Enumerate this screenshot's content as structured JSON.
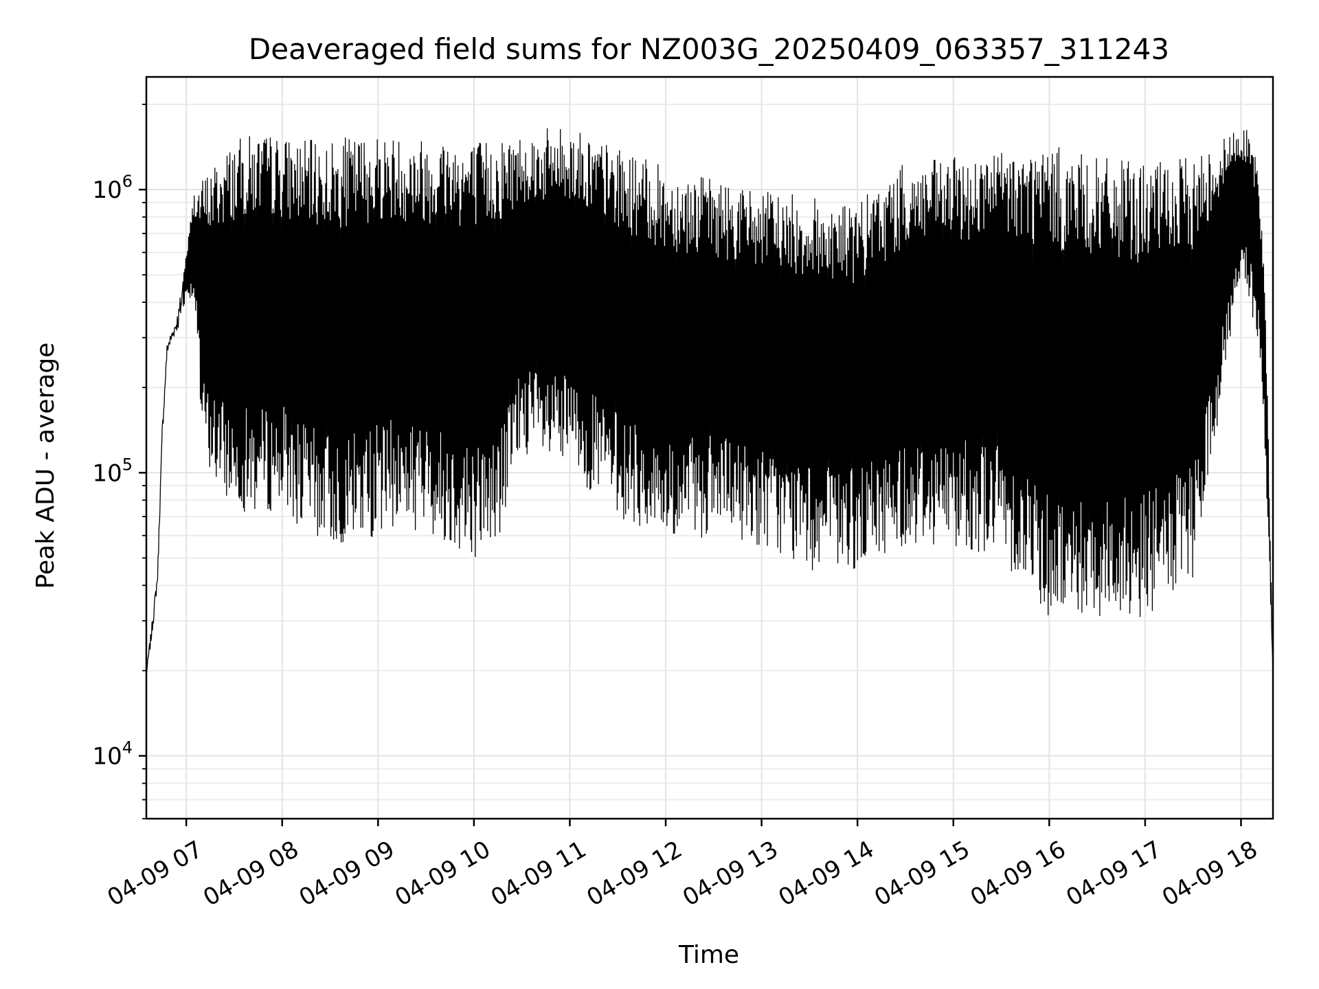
{
  "chart_data": {
    "type": "line",
    "title": "Deaveraged field sums for NZ003G_20250409_063357_311243",
    "xlabel": "Time",
    "ylabel": "Peak ADU - average",
    "yscale": "log",
    "grid": true,
    "line_color": "#000000",
    "x_range": [
      "04-09 06:35",
      "04-09 18:20"
    ],
    "ylim": [
      6000,
      2500000
    ],
    "x_ticks": [
      "04-09 07",
      "04-09 08",
      "04-09 09",
      "04-09 10",
      "04-09 11",
      "04-09 12",
      "04-09 13",
      "04-09 14",
      "04-09 15",
      "04-09 16",
      "04-09 17",
      "04-09 18"
    ],
    "y_ticks": [
      {
        "value": 10000,
        "base": "10",
        "exp": "4"
      },
      {
        "value": 100000,
        "base": "10",
        "exp": "5"
      },
      {
        "value": 1000000,
        "base": "10",
        "exp": "6"
      }
    ],
    "series": [
      {
        "x": [
          "04-09 06:35",
          "04-09 06:38",
          "04-09 06:42",
          "04-09 06:45",
          "04-09 06:48",
          "04-09 06:52",
          "04-09 06:55",
          "04-09 07:00",
          "04-09 07:05",
          "04-09 07:10",
          "04-09 07:15",
          "04-09 07:20",
          "04-09 07:30",
          "04-09 07:45",
          "04-09 08:00",
          "04-09 08:15",
          "04-09 08:30",
          "04-09 08:45",
          "04-09 09:00",
          "04-09 09:15",
          "04-09 09:30",
          "04-09 09:45",
          "04-09 10:00",
          "04-09 10:15",
          "04-09 10:30",
          "04-09 10:45",
          "04-09 11:00",
          "04-09 11:30",
          "04-09 12:00",
          "04-09 12:30",
          "04-09 13:00",
          "04-09 13:30",
          "04-09 14:00",
          "04-09 14:30",
          "04-09 15:00",
          "04-09 15:30",
          "04-09 16:00",
          "04-09 16:30",
          "04-09 17:00",
          "04-09 17:30",
          "04-09 18:00",
          "04-09 18:05",
          "04-09 18:10",
          "04-09 18:15",
          "04-09 18:20"
        ],
        "max": [
          20000,
          28000,
          45000,
          150000,
          290000,
          330000,
          380000,
          600000,
          1000000,
          1100000,
          1200000,
          1300000,
          1500000,
          1600000,
          1550000,
          1500000,
          1500000,
          1550000,
          1600000,
          1550000,
          1550000,
          1600000,
          1500000,
          1550000,
          1600000,
          1650000,
          1700000,
          1400000,
          1200000,
          1100000,
          1000000,
          950000,
          900000,
          1250000,
          1300000,
          1400000,
          1450000,
          1300000,
          1250000,
          1300000,
          1700000,
          1600000,
          1300000,
          500000,
          20000
        ],
        "min": [
          19000,
          25000,
          40000,
          130000,
          260000,
          300000,
          320000,
          420000,
          400000,
          120000,
          100000,
          85000,
          75000,
          70000,
          75000,
          60000,
          55000,
          55000,
          60000,
          65000,
          60000,
          55000,
          50000,
          55000,
          120000,
          100000,
          100000,
          70000,
          55000,
          60000,
          55000,
          45000,
          45000,
          55000,
          55000,
          50000,
          30000,
          30000,
          30000,
          40000,
          500000,
          400000,
          300000,
          120000,
          20000
        ]
      }
    ]
  }
}
